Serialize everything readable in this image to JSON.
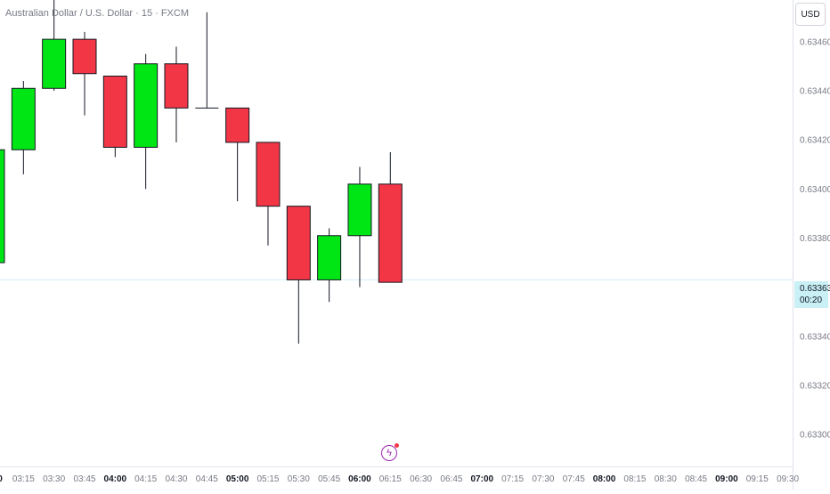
{
  "header": {
    "symbol_title": "Australian Dollar / U.S. Dollar · 15 · FXCM"
  },
  "price_scale": {
    "currency": "USD",
    "current_price": "0.63363",
    "countdown": "00:20",
    "colors": {
      "current_line": "#d3eff4",
      "current_badge": "#c9f0f5"
    }
  },
  "colors": {
    "up": "#00e615",
    "down": "#f23645",
    "wick": "#131722",
    "axis_text": "#787b86"
  },
  "toolbar": {
    "bolt_icon": "lightning-bolt-icon"
  },
  "chart_data": {
    "type": "candlestick",
    "title": "Australian Dollar / U.S. Dollar · 15 · FXCM",
    "ylim": [
      0.63287,
      0.63477
    ],
    "y_ticks": [
      "0.63460",
      "0.63440",
      "0.63420",
      "0.63400",
      "0.63380",
      "0.63340",
      "0.63320",
      "0.63300"
    ],
    "x_ticks": [
      {
        "label": "03:15",
        "bold": false
      },
      {
        "label": "03:30",
        "bold": false
      },
      {
        "label": "03:45",
        "bold": false
      },
      {
        "label": "04:00",
        "bold": true
      },
      {
        "label": "04:15",
        "bold": false
      },
      {
        "label": "04:30",
        "bold": false
      },
      {
        "label": "04:45",
        "bold": false
      },
      {
        "label": "05:00",
        "bold": true
      },
      {
        "label": "05:15",
        "bold": false
      },
      {
        "label": "05:30",
        "bold": false
      },
      {
        "label": "05:45",
        "bold": false
      },
      {
        "label": "06:00",
        "bold": true
      },
      {
        "label": "06:15",
        "bold": false
      },
      {
        "label": "06:30",
        "bold": false
      },
      {
        "label": "06:45",
        "bold": false
      },
      {
        "label": "07:00",
        "bold": true
      },
      {
        "label": "07:15",
        "bold": false
      },
      {
        "label": "07:30",
        "bold": false
      },
      {
        "label": "07:45",
        "bold": false
      },
      {
        "label": "08:00",
        "bold": true
      },
      {
        "label": "08:15",
        "bold": false
      },
      {
        "label": "08:30",
        "bold": false
      },
      {
        "label": "08:45",
        "bold": false
      },
      {
        "label": "09:00",
        "bold": true
      },
      {
        "label": "09:15",
        "bold": false
      },
      {
        "label": "09:30",
        "bold": false
      }
    ],
    "candles": [
      {
        "time": "03:00",
        "open": 0.6337,
        "high": 0.63416,
        "low": 0.6337,
        "close": 0.63416
      },
      {
        "time": "03:15",
        "open": 0.63416,
        "high": 0.63444,
        "low": 0.63406,
        "close": 0.63441
      },
      {
        "time": "03:30",
        "open": 0.63441,
        "high": 0.63482,
        "low": 0.6344,
        "close": 0.63461
      },
      {
        "time": "03:45",
        "open": 0.63461,
        "high": 0.63464,
        "low": 0.6343,
        "close": 0.63447
      },
      {
        "time": "04:00",
        "open": 0.63446,
        "high": 0.63446,
        "low": 0.63413,
        "close": 0.63417
      },
      {
        "time": "04:15",
        "open": 0.63417,
        "high": 0.63455,
        "low": 0.634,
        "close": 0.63451
      },
      {
        "time": "04:30",
        "open": 0.63451,
        "high": 0.63458,
        "low": 0.63419,
        "close": 0.63433
      },
      {
        "time": "04:45",
        "open": 0.63433,
        "high": 0.63472,
        "low": 0.63433,
        "close": 0.63433
      },
      {
        "time": "05:00",
        "open": 0.63433,
        "high": 0.63433,
        "low": 0.63395,
        "close": 0.63419
      },
      {
        "time": "05:15",
        "open": 0.63419,
        "high": 0.63419,
        "low": 0.63377,
        "close": 0.63393
      },
      {
        "time": "05:30",
        "open": 0.63393,
        "high": 0.63393,
        "low": 0.63337,
        "close": 0.63363
      },
      {
        "time": "05:45",
        "open": 0.63363,
        "high": 0.63384,
        "low": 0.63354,
        "close": 0.63381
      },
      {
        "time": "06:00",
        "open": 0.63381,
        "high": 0.63409,
        "low": 0.6336,
        "close": 0.63402
      },
      {
        "time": "06:15",
        "open": 0.63402,
        "high": 0.63415,
        "low": 0.63362,
        "close": 0.63362
      }
    ]
  }
}
